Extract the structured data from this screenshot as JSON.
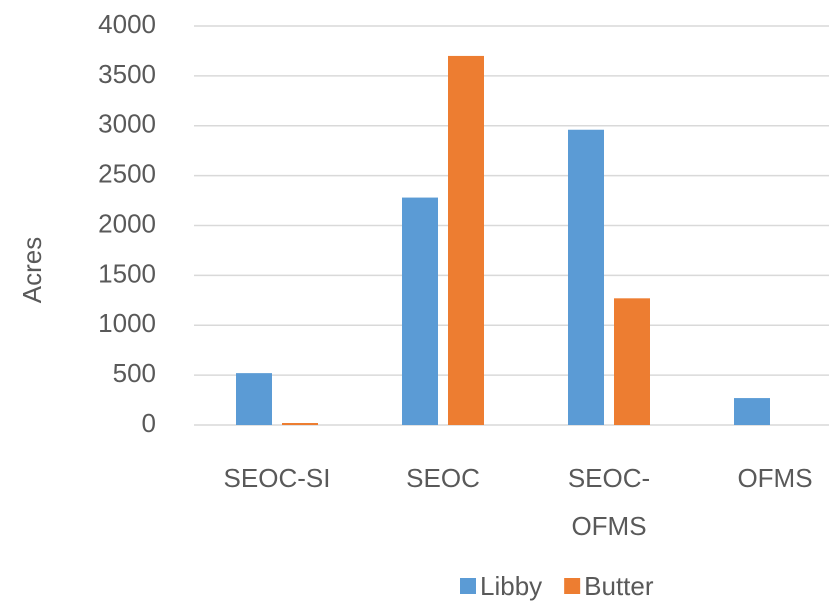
{
  "chart_data": {
    "type": "bar",
    "y_label": "Acres",
    "categories": [
      "SEOC-SI",
      "SEOC",
      "SEOC-OFMS",
      "OFMS"
    ],
    "series": [
      {
        "name": "Libby",
        "color": "#5b9bd5",
        "values": [
          520,
          2280,
          2960,
          270
        ]
      },
      {
        "name": "Butter",
        "color": "#ed7d31",
        "values": [
          20,
          3700,
          1270,
          0
        ]
      }
    ],
    "ylim": [
      0,
      4000
    ],
    "yticks": [
      0,
      500,
      1000,
      1500,
      2000,
      2500,
      3000,
      3500,
      4000
    ],
    "grid": true,
    "legend": "bottom"
  }
}
